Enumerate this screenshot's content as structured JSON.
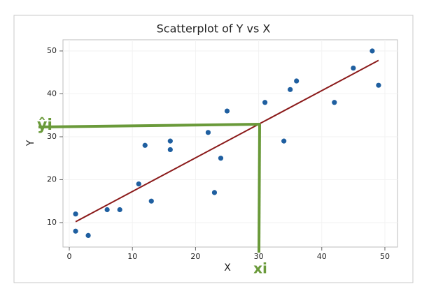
{
  "chart_data": {
    "type": "scatter",
    "title": "Scatterplot of Y vs X",
    "x_label": "X",
    "y_label": "Y",
    "x": [
      1,
      1,
      3,
      6,
      8,
      11,
      12,
      13,
      16,
      16,
      22,
      23,
      24,
      25,
      31,
      34,
      35,
      36,
      42,
      45,
      48,
      49
    ],
    "values": [
      12,
      8,
      7,
      13,
      13,
      19,
      28,
      15,
      29,
      27,
      31,
      17,
      25,
      36,
      38,
      29,
      41,
      43,
      38,
      46,
      50,
      42
    ],
    "color": "#1f5fa0",
    "fit_line": {
      "x": [
        1,
        49
      ],
      "y": [
        10.2,
        47.8
      ],
      "color": "#8b1a1a"
    },
    "xlim": [
      -1,
      52
    ],
    "ylim": [
      4.3,
      52.6
    ],
    "xticks": [
      0,
      10,
      20,
      30,
      40,
      50
    ],
    "yticks": [
      10,
      20,
      30,
      40,
      50
    ],
    "grid": true,
    "annotations": [
      "ŷi",
      "xi"
    ]
  }
}
